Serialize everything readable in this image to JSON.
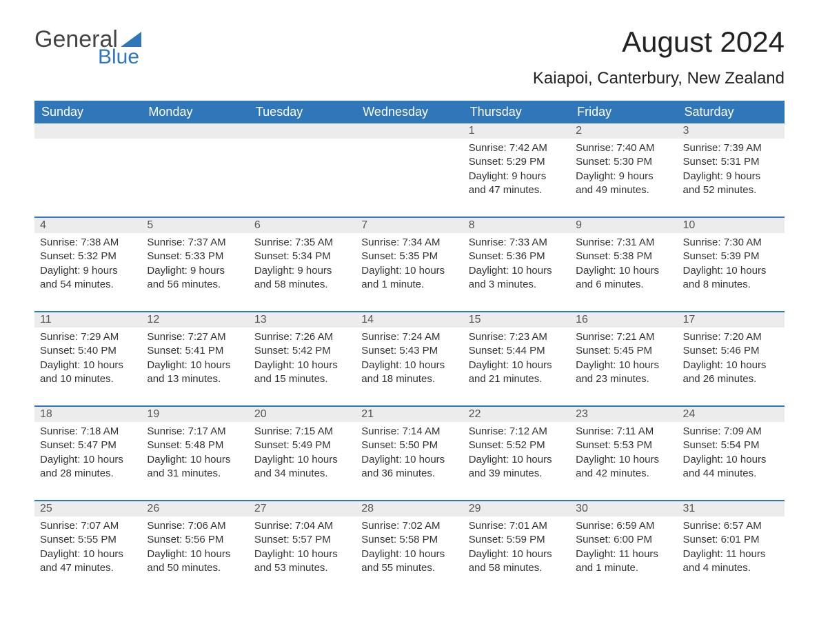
{
  "logo": {
    "word1": "General",
    "word2": "Blue"
  },
  "title": "August 2024",
  "location": "Kaiapoi, Canterbury, New Zealand",
  "colors": {
    "brand_blue": "#3077ba",
    "header_text": "#ffffff",
    "daynum_bg": "#ececec",
    "text": "#333333",
    "background": "#ffffff"
  },
  "weekdays": [
    "Sunday",
    "Monday",
    "Tuesday",
    "Wednesday",
    "Thursday",
    "Friday",
    "Saturday"
  ],
  "weeks": [
    [
      null,
      null,
      null,
      null,
      {
        "n": "1",
        "sr": "7:42 AM",
        "ss": "5:29 PM",
        "dl": "9 hours and 47 minutes."
      },
      {
        "n": "2",
        "sr": "7:40 AM",
        "ss": "5:30 PM",
        "dl": "9 hours and 49 minutes."
      },
      {
        "n": "3",
        "sr": "7:39 AM",
        "ss": "5:31 PM",
        "dl": "9 hours and 52 minutes."
      }
    ],
    [
      {
        "n": "4",
        "sr": "7:38 AM",
        "ss": "5:32 PM",
        "dl": "9 hours and 54 minutes."
      },
      {
        "n": "5",
        "sr": "7:37 AM",
        "ss": "5:33 PM",
        "dl": "9 hours and 56 minutes."
      },
      {
        "n": "6",
        "sr": "7:35 AM",
        "ss": "5:34 PM",
        "dl": "9 hours and 58 minutes."
      },
      {
        "n": "7",
        "sr": "7:34 AM",
        "ss": "5:35 PM",
        "dl": "10 hours and 1 minute."
      },
      {
        "n": "8",
        "sr": "7:33 AM",
        "ss": "5:36 PM",
        "dl": "10 hours and 3 minutes."
      },
      {
        "n": "9",
        "sr": "7:31 AM",
        "ss": "5:38 PM",
        "dl": "10 hours and 6 minutes."
      },
      {
        "n": "10",
        "sr": "7:30 AM",
        "ss": "5:39 PM",
        "dl": "10 hours and 8 minutes."
      }
    ],
    [
      {
        "n": "11",
        "sr": "7:29 AM",
        "ss": "5:40 PM",
        "dl": "10 hours and 10 minutes."
      },
      {
        "n": "12",
        "sr": "7:27 AM",
        "ss": "5:41 PM",
        "dl": "10 hours and 13 minutes."
      },
      {
        "n": "13",
        "sr": "7:26 AM",
        "ss": "5:42 PM",
        "dl": "10 hours and 15 minutes."
      },
      {
        "n": "14",
        "sr": "7:24 AM",
        "ss": "5:43 PM",
        "dl": "10 hours and 18 minutes."
      },
      {
        "n": "15",
        "sr": "7:23 AM",
        "ss": "5:44 PM",
        "dl": "10 hours and 21 minutes."
      },
      {
        "n": "16",
        "sr": "7:21 AM",
        "ss": "5:45 PM",
        "dl": "10 hours and 23 minutes."
      },
      {
        "n": "17",
        "sr": "7:20 AM",
        "ss": "5:46 PM",
        "dl": "10 hours and 26 minutes."
      }
    ],
    [
      {
        "n": "18",
        "sr": "7:18 AM",
        "ss": "5:47 PM",
        "dl": "10 hours and 28 minutes."
      },
      {
        "n": "19",
        "sr": "7:17 AM",
        "ss": "5:48 PM",
        "dl": "10 hours and 31 minutes."
      },
      {
        "n": "20",
        "sr": "7:15 AM",
        "ss": "5:49 PM",
        "dl": "10 hours and 34 minutes."
      },
      {
        "n": "21",
        "sr": "7:14 AM",
        "ss": "5:50 PM",
        "dl": "10 hours and 36 minutes."
      },
      {
        "n": "22",
        "sr": "7:12 AM",
        "ss": "5:52 PM",
        "dl": "10 hours and 39 minutes."
      },
      {
        "n": "23",
        "sr": "7:11 AM",
        "ss": "5:53 PM",
        "dl": "10 hours and 42 minutes."
      },
      {
        "n": "24",
        "sr": "7:09 AM",
        "ss": "5:54 PM",
        "dl": "10 hours and 44 minutes."
      }
    ],
    [
      {
        "n": "25",
        "sr": "7:07 AM",
        "ss": "5:55 PM",
        "dl": "10 hours and 47 minutes."
      },
      {
        "n": "26",
        "sr": "7:06 AM",
        "ss": "5:56 PM",
        "dl": "10 hours and 50 minutes."
      },
      {
        "n": "27",
        "sr": "7:04 AM",
        "ss": "5:57 PM",
        "dl": "10 hours and 53 minutes."
      },
      {
        "n": "28",
        "sr": "7:02 AM",
        "ss": "5:58 PM",
        "dl": "10 hours and 55 minutes."
      },
      {
        "n": "29",
        "sr": "7:01 AM",
        "ss": "5:59 PM",
        "dl": "10 hours and 58 minutes."
      },
      {
        "n": "30",
        "sr": "6:59 AM",
        "ss": "6:00 PM",
        "dl": "11 hours and 1 minute."
      },
      {
        "n": "31",
        "sr": "6:57 AM",
        "ss": "6:01 PM",
        "dl": "11 hours and 4 minutes."
      }
    ]
  ],
  "labels": {
    "sunrise": "Sunrise:",
    "sunset": "Sunset:",
    "daylight": "Daylight:"
  }
}
